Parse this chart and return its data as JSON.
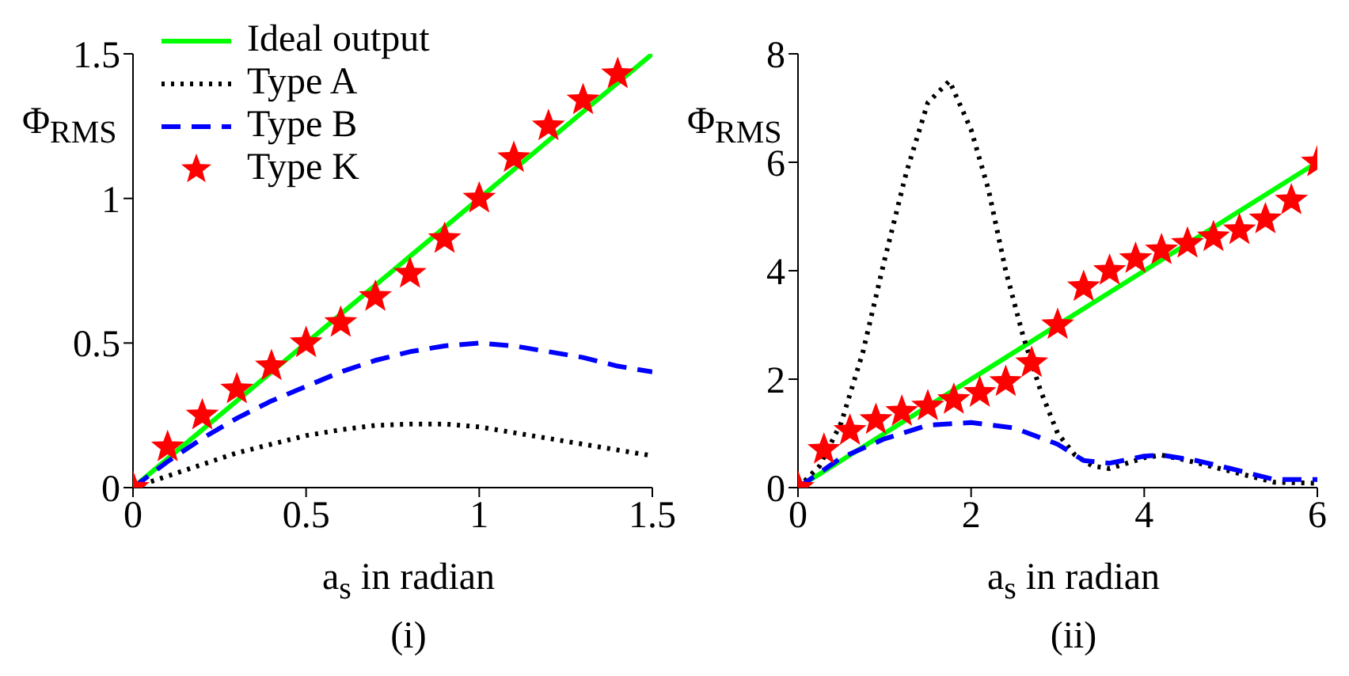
{
  "chart_data": [
    {
      "type": "line",
      "xlabel": "a$_{s}$ in radian",
      "ylabel": "Φ$_{RMS}$",
      "annotations": [
        "(i)"
      ],
      "xlim": [
        0,
        1.5
      ],
      "xticks": [
        0,
        0.5,
        1,
        1.5
      ],
      "ylim": [
        0,
        1.5
      ],
      "yticks": [
        0,
        0.5,
        1,
        1.5
      ],
      "grid": false,
      "legend": "top left",
      "series": [
        {
          "name": "Ideal output",
          "color": "#00ff00",
          "line_style": "solid",
          "x": [
            0,
            1.5
          ],
          "values": [
            0,
            1.5
          ]
        },
        {
          "name": "Type A",
          "color": "#000000",
          "line_style": "dotted",
          "x": [
            0,
            0.1,
            0.2,
            0.3,
            0.4,
            0.5,
            0.6,
            0.7,
            0.8,
            0.9,
            1.0,
            1.1,
            1.2,
            1.3,
            1.4,
            1.5
          ],
          "values": [
            0,
            0.04,
            0.08,
            0.12,
            0.15,
            0.18,
            0.2,
            0.215,
            0.22,
            0.22,
            0.21,
            0.19,
            0.17,
            0.15,
            0.13,
            0.11
          ]
        },
        {
          "name": "Type B",
          "color": "#0000ff",
          "line_style": "dashed",
          "x": [
            0,
            0.1,
            0.2,
            0.3,
            0.4,
            0.5,
            0.6,
            0.7,
            0.8,
            0.9,
            1.0,
            1.1,
            1.2,
            1.3,
            1.4,
            1.5
          ],
          "values": [
            0,
            0.09,
            0.17,
            0.24,
            0.3,
            0.35,
            0.4,
            0.44,
            0.47,
            0.49,
            0.5,
            0.49,
            0.47,
            0.45,
            0.42,
            0.4
          ]
        },
        {
          "name": "Type K",
          "type": "scatter",
          "marker": "star",
          "color": "#ff0000",
          "x": [
            0,
            0.1,
            0.2,
            0.3,
            0.4,
            0.5,
            0.6,
            0.7,
            0.8,
            0.9,
            1.0,
            1.1,
            1.2,
            1.3,
            1.4
          ],
          "values": [
            0,
            0.14,
            0.25,
            0.34,
            0.42,
            0.5,
            0.57,
            0.66,
            0.74,
            0.86,
            1.0,
            1.14,
            1.25,
            1.34,
            1.43
          ]
        }
      ]
    },
    {
      "type": "line",
      "xlabel": "a$_{s}$ in radian",
      "ylabel": "Φ$_{RMS}$",
      "annotations": [
        "(ii)"
      ],
      "xlim": [
        0,
        6
      ],
      "xticks": [
        0,
        2,
        4,
        6
      ],
      "ylim": [
        0,
        8
      ],
      "yticks": [
        0,
        2,
        4,
        6,
        8
      ],
      "grid": false,
      "legend": false,
      "series": [
        {
          "color": "#00ff00",
          "line_style": "solid",
          "x": [
            0,
            6
          ],
          "values": [
            0,
            6
          ]
        },
        {
          "color": "#000000",
          "line_style": "dotted",
          "x": [
            0,
            0.25,
            0.5,
            0.75,
            1.0,
            1.25,
            1.5,
            1.75,
            2.0,
            2.2,
            2.4,
            2.6,
            2.8,
            3.0,
            3.2,
            3.4,
            3.6,
            3.8,
            4.0,
            4.2,
            4.5,
            5.0,
            5.5,
            6.0
          ],
          "values": [
            0,
            0.4,
            1.2,
            2.5,
            4.2,
            5.8,
            7.1,
            7.5,
            6.6,
            5.5,
            4.0,
            2.8,
            1.8,
            1.0,
            0.6,
            0.4,
            0.35,
            0.45,
            0.55,
            0.6,
            0.5,
            0.3,
            0.1,
            0.08
          ]
        },
        {
          "color": "#0000ff",
          "line_style": "dashed",
          "x": [
            0,
            0.5,
            1.0,
            1.5,
            2.0,
            2.5,
            3.0,
            3.3,
            3.6,
            4.0,
            4.2,
            4.6,
            5.0,
            5.5,
            6.0
          ],
          "values": [
            0,
            0.55,
            0.9,
            1.15,
            1.2,
            1.1,
            0.8,
            0.5,
            0.45,
            0.58,
            0.6,
            0.5,
            0.35,
            0.15,
            0.15
          ]
        },
        {
          "type": "scatter",
          "marker": "star",
          "color": "#ff0000",
          "x": [
            0,
            0.3,
            0.6,
            0.9,
            1.2,
            1.5,
            1.8,
            2.1,
            2.4,
            2.7,
            3.0,
            3.3,
            3.6,
            3.9,
            4.2,
            4.5,
            4.8,
            5.1,
            5.4,
            5.7,
            6.0
          ],
          "values": [
            0,
            0.7,
            1.05,
            1.25,
            1.4,
            1.5,
            1.62,
            1.75,
            1.95,
            2.3,
            3.0,
            3.7,
            4.0,
            4.22,
            4.38,
            4.5,
            4.62,
            4.75,
            4.95,
            5.3,
            6.0
          ]
        }
      ]
    }
  ]
}
